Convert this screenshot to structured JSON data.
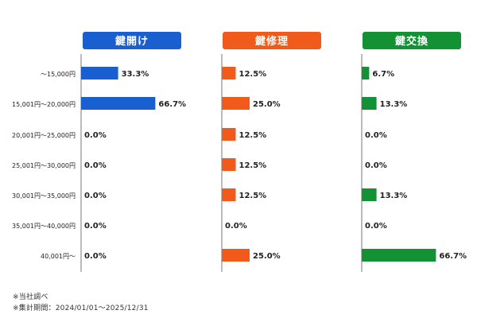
{
  "chart_data": {
    "type": "bar",
    "orientation": "horizontal",
    "categories": [
      "〜15,000円",
      "15,001円〜20,000円",
      "20,001円〜25,000円",
      "25,001円〜30,000円",
      "30,001円〜35,000円",
      "35,001円〜40,000円",
      "40,001円〜"
    ],
    "series": [
      {
        "name": "鍵開け",
        "color": "#1a5fcf",
        "values": [
          33.3,
          66.7,
          0.0,
          0.0,
          0.0,
          0.0,
          0.0
        ]
      },
      {
        "name": "鍵修理",
        "color": "#f05a1a",
        "values": [
          12.5,
          25.0,
          12.5,
          12.5,
          12.5,
          0.0,
          25.0
        ]
      },
      {
        "name": "鍵交換",
        "color": "#129135",
        "values": [
          6.7,
          13.3,
          0.0,
          0.0,
          13.3,
          0.0,
          66.7
        ]
      }
    ],
    "value_suffix": "%",
    "xlim": [
      0,
      100
    ],
    "grid": false
  },
  "notes": [
    "※当社調べ",
    "※集計期間：2024/01/01〜2025/12/31"
  ]
}
